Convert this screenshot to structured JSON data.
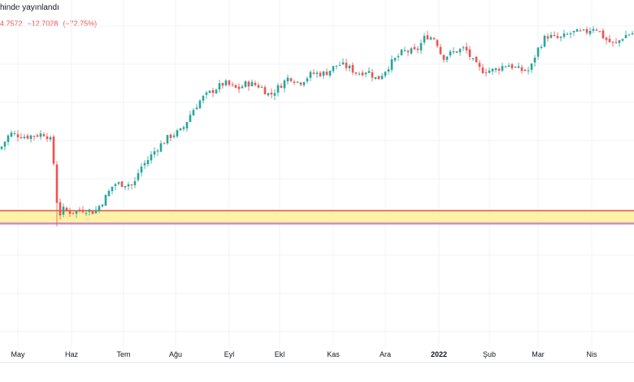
{
  "header": {
    "title_fragment": "hinde yayınlandı",
    "last_value_fragment": "4.7572",
    "change": "−12.7028",
    "change_pct": "(−72.75%)"
  },
  "colors": {
    "up": "#26a69a",
    "down": "#ef5350",
    "zone_fill": "#fff2a8",
    "zone_border_top": "#e5533c",
    "zone_border_bottom": "#9c27b0",
    "grid": "#f0f3fa",
    "axis_text": "#131722"
  },
  "chart_data": {
    "type": "candlestick",
    "title": "",
    "xlabel": "",
    "ylabel": "",
    "y_axis_labels_visible": false,
    "grid": true,
    "x_ticks": [
      "May",
      "Haz",
      "Tem",
      "Ağu",
      "Eyl",
      "Ekl",
      "Kas",
      "Ara",
      "2022",
      "Şub",
      "Mar",
      "Nis"
    ],
    "x_tick_bold": [
      false,
      false,
      false,
      false,
      false,
      false,
      false,
      false,
      true,
      false,
      false,
      false
    ],
    "x_range": [
      0,
      390
    ],
    "x_tick_positions": [
      11,
      44,
      76,
      108,
      141,
      172,
      205,
      237,
      270,
      301,
      331,
      364
    ],
    "ylim": [
      0,
      100
    ],
    "anchors": [
      [
        0,
        63
      ],
      [
        6,
        68
      ],
      [
        16,
        67
      ],
      [
        28,
        68
      ],
      [
        32,
        65
      ],
      [
        34,
        52
      ],
      [
        36,
        41
      ],
      [
        38,
        44
      ],
      [
        44,
        43
      ],
      [
        52,
        44
      ],
      [
        58,
        43
      ],
      [
        64,
        47
      ],
      [
        70,
        52
      ],
      [
        80,
        52
      ],
      [
        82,
        51
      ],
      [
        86,
        57
      ],
      [
        90,
        59
      ],
      [
        96,
        63
      ],
      [
        104,
        67
      ],
      [
        112,
        69
      ],
      [
        118,
        75
      ],
      [
        124,
        79
      ],
      [
        132,
        82
      ],
      [
        138,
        84
      ],
      [
        146,
        82
      ],
      [
        152,
        84
      ],
      [
        160,
        83
      ],
      [
        166,
        80
      ],
      [
        172,
        83
      ],
      [
        178,
        86
      ],
      [
        184,
        84
      ],
      [
        192,
        87
      ],
      [
        200,
        87
      ],
      [
        208,
        90
      ],
      [
        214,
        89
      ],
      [
        220,
        87
      ],
      [
        226,
        88
      ],
      [
        232,
        85
      ],
      [
        240,
        90
      ],
      [
        248,
        94
      ],
      [
        256,
        94
      ],
      [
        262,
        99
      ],
      [
        268,
        98
      ],
      [
        272,
        92
      ],
      [
        280,
        94
      ],
      [
        286,
        95
      ],
      [
        292,
        90
      ],
      [
        296,
        88
      ],
      [
        304,
        88
      ],
      [
        312,
        90
      ],
      [
        320,
        88
      ],
      [
        326,
        88
      ],
      [
        330,
        94
      ],
      [
        336,
        99
      ],
      [
        344,
        98
      ],
      [
        352,
        100
      ],
      [
        360,
        100
      ],
      [
        366,
        102
      ],
      [
        372,
        98
      ],
      [
        378,
        96
      ],
      [
        384,
        99
      ],
      [
        390,
        100
      ]
    ],
    "support_zone": {
      "low": 39.5,
      "high": 43.5
    }
  }
}
